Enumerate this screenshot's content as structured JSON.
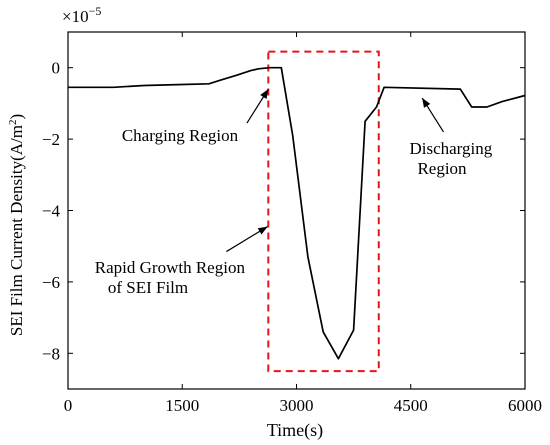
{
  "chart_data": {
    "type": "line",
    "title": "",
    "xlabel": "Time(s)",
    "ylabel_main": "SEI Film Current Density(A/m",
    "ylabel_sup": "2",
    "ylabel_close": ")",
    "multiplier_base": "×10",
    "multiplier_exp": "−5",
    "xlim": [
      0,
      6000
    ],
    "ylim": [
      -9,
      1
    ],
    "x_ticks": [
      0,
      1500,
      3000,
      4500,
      6000
    ],
    "y_ticks": [
      0,
      -2,
      -4,
      -6,
      -8
    ],
    "grid": false,
    "legend": "none",
    "series": [
      {
        "color": "#000000",
        "x": [
          0,
          600,
          1000,
          1500,
          1850,
          2000,
          2200,
          2400,
          2500,
          2650,
          2800,
          2950,
          3150,
          3350,
          3550,
          3750,
          3900,
          4050,
          4150,
          5150,
          5300,
          5500,
          5700,
          6000
        ],
        "y": [
          -0.55,
          -0.55,
          -0.5,
          -0.47,
          -0.45,
          -0.35,
          -0.22,
          -0.08,
          -0.03,
          0.0,
          0.0,
          -1.9,
          -5.3,
          -7.4,
          -8.15,
          -7.35,
          -1.5,
          -1.1,
          -0.55,
          -0.6,
          -1.1,
          -1.1,
          -0.95,
          -0.78
        ]
      }
    ],
    "highlight_box": {
      "x": [
        2630,
        4080
      ],
      "y": [
        -8.5,
        0.45
      ],
      "color": "#e8141c",
      "style": "dashed"
    },
    "annotations": [
      {
        "lines": [
          "Charging Region"
        ],
        "arrow_from": [
          2350,
          -1.55
        ],
        "arrow_to": [
          2630,
          -0.6
        ]
      },
      {
        "lines": [
          "Discharging",
          "Region"
        ],
        "arrow_from": [
          4930,
          -1.8
        ],
        "arrow_to": [
          4650,
          -0.85
        ]
      },
      {
        "lines": [
          "Rapid Growth Region",
          "of SEI Film"
        ],
        "arrow_from": [
          2080,
          -5.15
        ],
        "arrow_to": [
          2620,
          -4.45
        ]
      }
    ]
  }
}
